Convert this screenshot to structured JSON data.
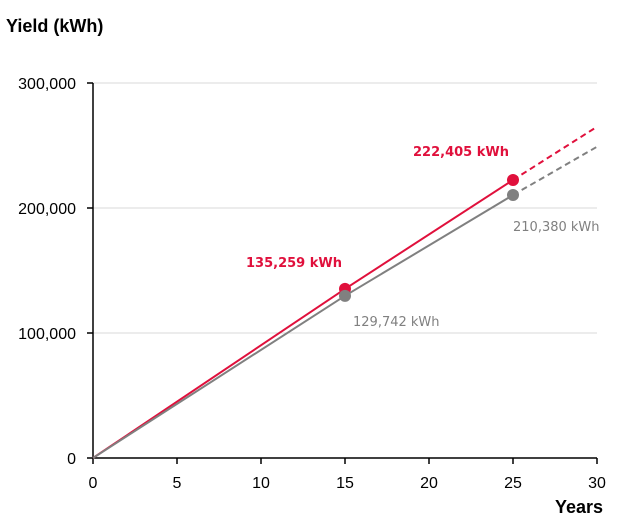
{
  "chart_data": {
    "type": "line",
    "title": "",
    "xlabel": "Years",
    "ylabel": "Yield (kWh)",
    "xlim": [
      0,
      30
    ],
    "ylim": [
      0,
      300000
    ],
    "x_ticks": [
      "0",
      "5",
      "10",
      "15",
      "20",
      "25",
      "30"
    ],
    "y_ticks": [
      "0",
      "100,000",
      "200,000",
      "300,000"
    ],
    "grid": "horizontal",
    "legend": "none",
    "series": [
      {
        "color": "#e0103c",
        "solid": [
          [
            0,
            0
          ],
          [
            1,
            9017
          ],
          [
            15,
            135259
          ],
          [
            25,
            222405
          ]
        ],
        "projected": [
          [
            25,
            222405
          ],
          [
            30,
            265000
          ]
        ],
        "highlights": [
          {
            "x": 15,
            "y": 135259,
            "label": "135,259 kWh"
          },
          {
            "x": 25,
            "y": 222405,
            "label": "222,405 kWh"
          }
        ]
      },
      {
        "color": "#808080",
        "solid": [
          [
            0,
            0
          ],
          [
            1,
            8649
          ],
          [
            15,
            129742
          ],
          [
            25,
            210380
          ]
        ],
        "projected": [
          [
            25,
            210380
          ],
          [
            30,
            249000
          ]
        ],
        "highlights": [
          {
            "x": 15,
            "y": 129742,
            "label": "129,742 kWh"
          },
          {
            "x": 25,
            "y": 210380,
            "label": "210,380 kWh"
          }
        ]
      }
    ]
  }
}
